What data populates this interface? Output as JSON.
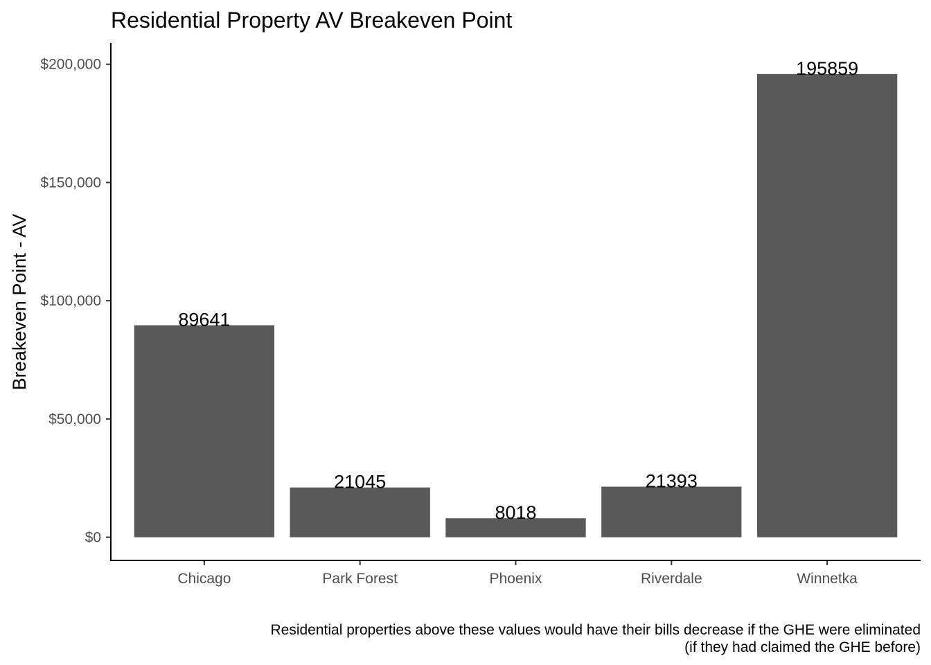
{
  "chart_data": {
    "type": "bar",
    "title": "Residential Property AV Breakeven Point",
    "xlabel": "",
    "ylabel": "Breakeven Point - AV",
    "categories": [
      "Chicago",
      "Park Forest",
      "Phoenix",
      "Riverdale",
      "Winnetka"
    ],
    "values": [
      89641,
      21045,
      8018,
      21393,
      195859
    ],
    "data_labels": [
      "89641",
      "21045",
      "8018",
      "21393",
      "195859"
    ],
    "y_ticks": [
      0,
      50000,
      100000,
      150000,
      200000
    ],
    "y_tick_labels": [
      "$0",
      "$50,000",
      "$100,000",
      "$150,000",
      "$200,000"
    ],
    "ylim": [
      -9793,
      209000
    ],
    "grid": false,
    "bar_color": "#595959",
    "caption_line1": "Residential properties above these values would have their bills decrease if the GHE were eliminated",
    "caption_line2": "(if they had claimed the GHE before)"
  }
}
